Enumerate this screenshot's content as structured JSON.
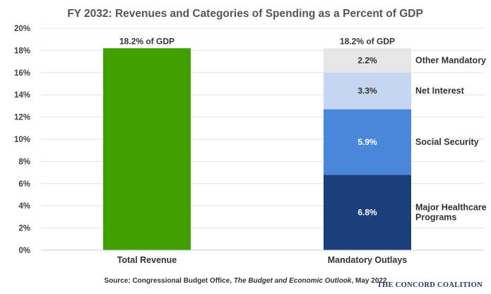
{
  "chart_data": {
    "type": "bar",
    "title": "FY 2032: Revenues and Categories of Spending as a Percent of GDP",
    "ylim": [
      0,
      20
    ],
    "yticks": [
      "0%",
      "2%",
      "4%",
      "6%",
      "8%",
      "10%",
      "12%",
      "14%",
      "16%",
      "18%",
      "20%"
    ],
    "grid": true,
    "categories": [
      "Total Revenue",
      "Mandatory Outlays"
    ],
    "total_revenue": {
      "value": 18.2,
      "label": "18.2% of GDP",
      "color": "#3fa000"
    },
    "mandatory_outlays": {
      "total_label": "18.2% of GDP",
      "stack": [
        {
          "name": "Major Healthcare Programs",
          "name_lines": [
            "Major Healthcare",
            "Programs"
          ],
          "value": 6.8,
          "label": "6.8%",
          "color": "#1a3f7a",
          "text_color": "#ffffff"
        },
        {
          "name": "Social Security",
          "name_lines": [
            "Social Security"
          ],
          "value": 5.9,
          "label": "5.9%",
          "color": "#4a86d9",
          "text_color": "#ffffff"
        },
        {
          "name": "Net Interest",
          "name_lines": [
            "Net Interest"
          ],
          "value": 3.3,
          "label": "3.3%",
          "color": "#c4d6f2",
          "text_color": "#333333"
        },
        {
          "name": "Other Mandatory",
          "name_lines": [
            "Other Mandatory"
          ],
          "value": 2.2,
          "label": "2.2%",
          "color": "#e6e6e6",
          "text_color": "#333333"
        }
      ]
    }
  },
  "footer": {
    "source_prefix": "Source: Congressional Budget Office, ",
    "source_title": "The Budget and Economic Outlook",
    "source_suffix": ", May 2022",
    "logo": "THE CONCORD COALITION"
  }
}
